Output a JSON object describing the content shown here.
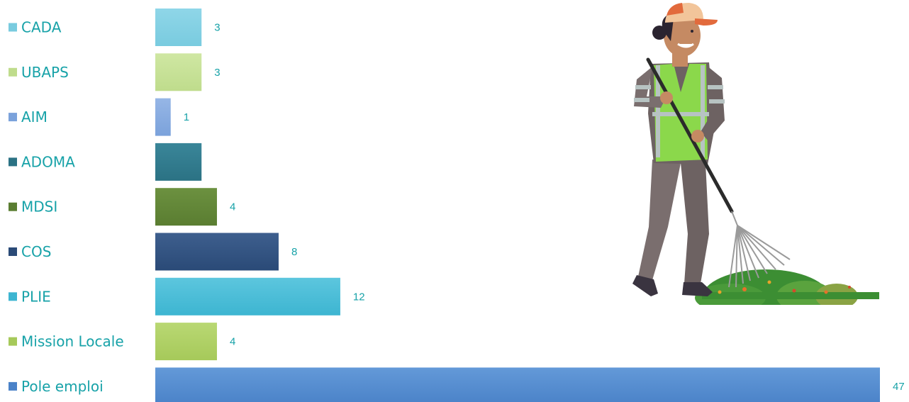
{
  "chart_data": {
    "type": "bar",
    "orientation": "horizontal",
    "categories": [
      "CADA",
      "UBAPS",
      "AIM",
      "ADOMA",
      "MDSI",
      "COS",
      "PLIE",
      "Mission Locale",
      "Pole emploi"
    ],
    "values": [
      3,
      3,
      1,
      3,
      4,
      8,
      12,
      4,
      47
    ],
    "value_labels": [
      "3",
      "3",
      "1",
      "",
      "4",
      "8",
      "12",
      "4",
      "47"
    ],
    "bar_colors": [
      "#79cbdf",
      "#bfdc8c",
      "#7ba2db",
      "#2b7284",
      "#5a7d31",
      "#2a4a77",
      "#3db5d1",
      "#a6c95a",
      "#4a82c8"
    ],
    "bar_colors_light": [
      "#8fd6e8",
      "#cfe7a3",
      "#96b6e6",
      "#3a8699",
      "#6c9140",
      "#3e5f8e",
      "#5cc6de",
      "#b9d873",
      "#6399d8"
    ],
    "label_color": "#17a2a8",
    "xlim": [
      0,
      47
    ],
    "legend": "left",
    "grid": false
  }
}
